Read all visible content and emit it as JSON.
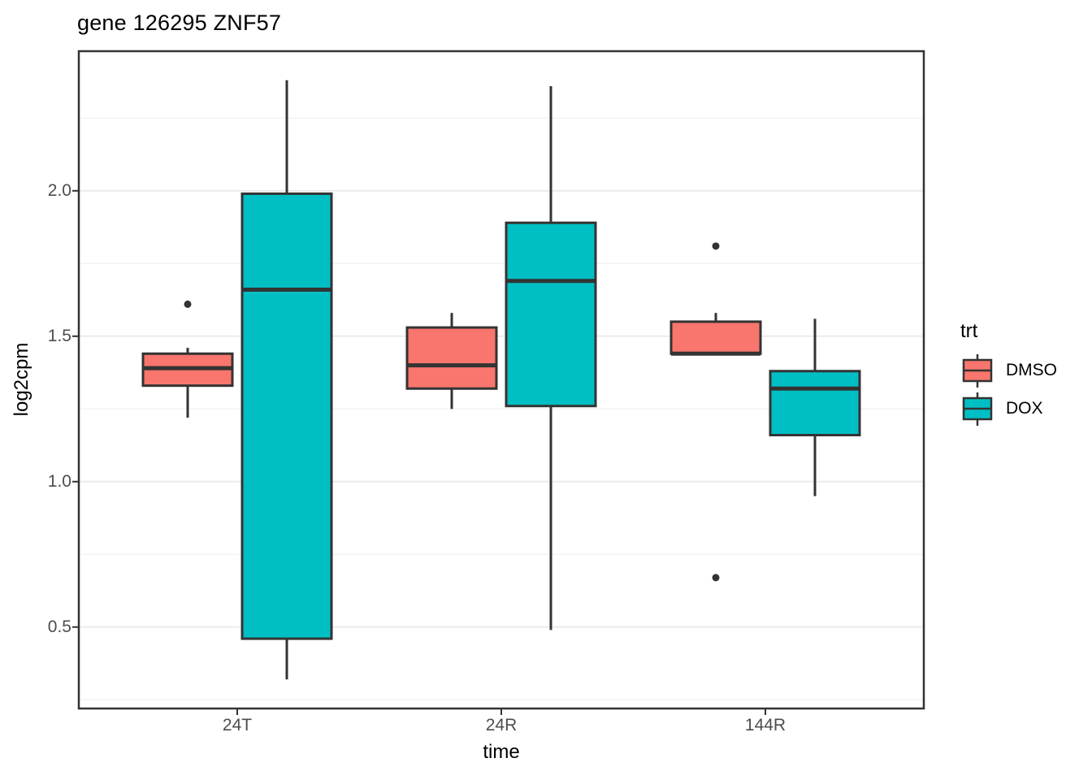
{
  "title": "gene 126295 ZNF57",
  "axes": {
    "x_label": "time",
    "y_label": "log2cpm",
    "x_ticks": [
      "24T",
      "24R",
      "144R"
    ],
    "y_tick_labels": [
      "2.0",
      "1.5",
      "1.0",
      "0.5"
    ]
  },
  "legend": {
    "title": "trt",
    "entries": [
      {
        "label": "DMSO",
        "color": "#F8766D"
      },
      {
        "label": "DOX",
        "color": "#00BFC4"
      }
    ]
  },
  "colors": {
    "box_border": "#333333",
    "outlier": "#333333",
    "grid_major": "#EBEBEB",
    "grid_minor": "#F2F2F2",
    "panel_border": "#333333",
    "tick_mark": "#333333",
    "axis_text": "#4d4d4d"
  },
  "chart_data": {
    "type": "boxplot",
    "title": "gene 126295 ZNF57",
    "xlabel": "time",
    "ylabel": "log2cpm",
    "categories": [
      "24T",
      "24R",
      "144R"
    ],
    "ylim": [
      0.22,
      2.48
    ],
    "y_major_ticks": [
      2.0,
      1.5,
      1.0,
      0.5
    ],
    "y_minor_ticks": [
      2.25,
      1.75,
      1.25,
      0.75,
      0.25
    ],
    "grid": true,
    "legend_position": "right",
    "series": [
      {
        "name": "DMSO",
        "color": "#F8766D",
        "boxes": [
          {
            "category": "24T",
            "whisker_low": 1.22,
            "q1": 1.33,
            "median": 1.39,
            "q3": 1.44,
            "whisker_high": 1.46,
            "outliers": [
              1.61
            ]
          },
          {
            "category": "24R",
            "whisker_low": 1.25,
            "q1": 1.32,
            "median": 1.4,
            "q3": 1.53,
            "whisker_high": 1.58,
            "outliers": []
          },
          {
            "category": "144R",
            "whisker_low": 1.44,
            "q1": 1.44,
            "median": 1.44,
            "q3": 1.55,
            "whisker_high": 1.58,
            "outliers": [
              1.81,
              0.67
            ]
          }
        ]
      },
      {
        "name": "DOX",
        "color": "#00BFC4",
        "boxes": [
          {
            "category": "24T",
            "whisker_low": 0.32,
            "q1": 0.46,
            "median": 1.66,
            "q3": 1.99,
            "whisker_high": 2.38,
            "outliers": []
          },
          {
            "category": "24R",
            "whisker_low": 0.49,
            "q1": 1.26,
            "median": 1.69,
            "q3": 1.89,
            "whisker_high": 2.36,
            "outliers": []
          },
          {
            "category": "144R",
            "whisker_low": 0.95,
            "q1": 1.16,
            "median": 1.32,
            "q3": 1.38,
            "whisker_high": 1.56,
            "outliers": []
          }
        ]
      }
    ]
  }
}
